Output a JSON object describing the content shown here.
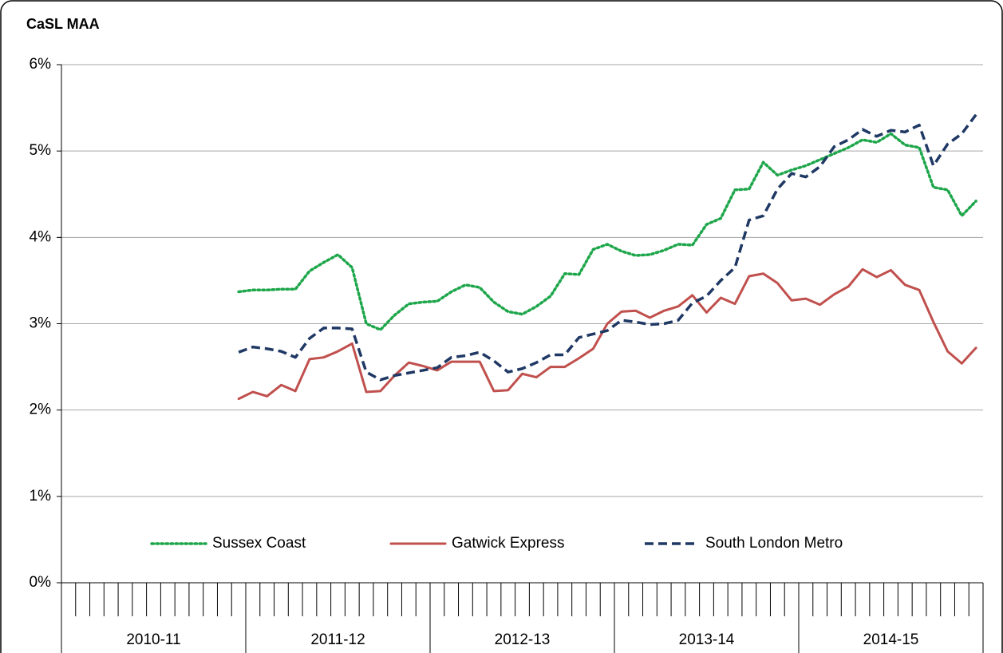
{
  "chart_data": {
    "type": "line",
    "title": "CaSL MAA",
    "categories": [
      null,
      null,
      null,
      null,
      null,
      null,
      null,
      null,
      null,
      null,
      null,
      null,
      null,
      null,
      null,
      null,
      null,
      null,
      null,
      null,
      null,
      null,
      null,
      null,
      null,
      null,
      null,
      null,
      null,
      null,
      null,
      null,
      null,
      null,
      null,
      null,
      null,
      null,
      null,
      null,
      null,
      null,
      null,
      null,
      null,
      null,
      null,
      null,
      null,
      null,
      null,
      null,
      null,
      null,
      null,
      null,
      null,
      null,
      null,
      null,
      null,
      null,
      null,
      null,
      null
    ],
    "groups": [
      "2010-11",
      "2011-12",
      "2012-13",
      "2013-14",
      "2014-15"
    ],
    "ylim": [
      0,
      6
    ],
    "yticks": [
      {
        "value": 0,
        "label": "0%"
      },
      {
        "value": 1,
        "label": "1%"
      },
      {
        "value": 2,
        "label": "2%"
      },
      {
        "value": 3,
        "label": "3%"
      },
      {
        "value": 4,
        "label": "4%"
      },
      {
        "value": 5,
        "label": "5%"
      },
      {
        "value": 6,
        "label": "6%"
      }
    ],
    "grid": true,
    "legend": "bottom",
    "series": [
      {
        "name": "Sussex Coast",
        "color": "#1ea64b",
        "dash": "dotted",
        "values": [
          null,
          null,
          null,
          null,
          null,
          null,
          null,
          null,
          null,
          null,
          null,
          null,
          3.37,
          3.39,
          3.39,
          3.4,
          3.4,
          3.61,
          3.71,
          3.8,
          3.65,
          3.0,
          2.93,
          3.1,
          3.23,
          3.25,
          3.26,
          3.37,
          3.45,
          3.42,
          3.25,
          3.14,
          3.11,
          3.2,
          3.32,
          3.58,
          3.57,
          3.86,
          3.92,
          3.84,
          3.79,
          3.8,
          3.85,
          3.92,
          3.91,
          4.15,
          4.22,
          4.55,
          4.56,
          4.87,
          4.72,
          4.78,
          4.83,
          4.9,
          4.97,
          5.04,
          5.13,
          5.1,
          5.2,
          5.07,
          5.04,
          4.58,
          4.55,
          4.25,
          4.42
        ]
      },
      {
        "name": "Gatwick Express",
        "color": "#c0504d",
        "dash": "solid",
        "values": [
          null,
          null,
          null,
          null,
          null,
          null,
          null,
          null,
          null,
          null,
          null,
          null,
          2.13,
          2.21,
          2.16,
          2.29,
          2.22,
          2.59,
          2.61,
          2.68,
          2.77,
          2.21,
          2.22,
          2.4,
          2.55,
          2.51,
          2.46,
          2.56,
          2.56,
          2.56,
          2.22,
          2.23,
          2.42,
          2.38,
          2.5,
          2.5,
          2.6,
          2.71,
          3.0,
          3.14,
          3.15,
          3.07,
          3.15,
          3.2,
          3.33,
          3.13,
          3.3,
          3.23,
          3.55,
          3.58,
          3.47,
          3.27,
          3.29,
          3.22,
          3.34,
          3.43,
          3.63,
          3.54,
          3.62,
          3.45,
          3.39,
          3.02,
          2.68,
          2.54,
          2.72
        ]
      },
      {
        "name": "South London Metro",
        "color": "#1f3864",
        "dash": "dashed",
        "values": [
          null,
          null,
          null,
          null,
          null,
          null,
          null,
          null,
          null,
          null,
          null,
          null,
          2.67,
          2.73,
          2.71,
          2.68,
          2.61,
          2.83,
          2.95,
          2.95,
          2.94,
          2.44,
          2.35,
          2.4,
          2.43,
          2.46,
          2.49,
          2.61,
          2.63,
          2.67,
          2.57,
          2.44,
          2.48,
          2.55,
          2.64,
          2.64,
          2.84,
          2.88,
          2.92,
          3.04,
          3.02,
          2.99,
          3.0,
          3.04,
          3.24,
          3.32,
          3.5,
          3.65,
          4.2,
          4.25,
          4.56,
          4.74,
          4.7,
          4.82,
          5.05,
          5.13,
          5.25,
          5.17,
          5.24,
          5.22,
          5.3,
          4.83,
          5.08,
          5.2,
          5.42
        ]
      }
    ]
  }
}
